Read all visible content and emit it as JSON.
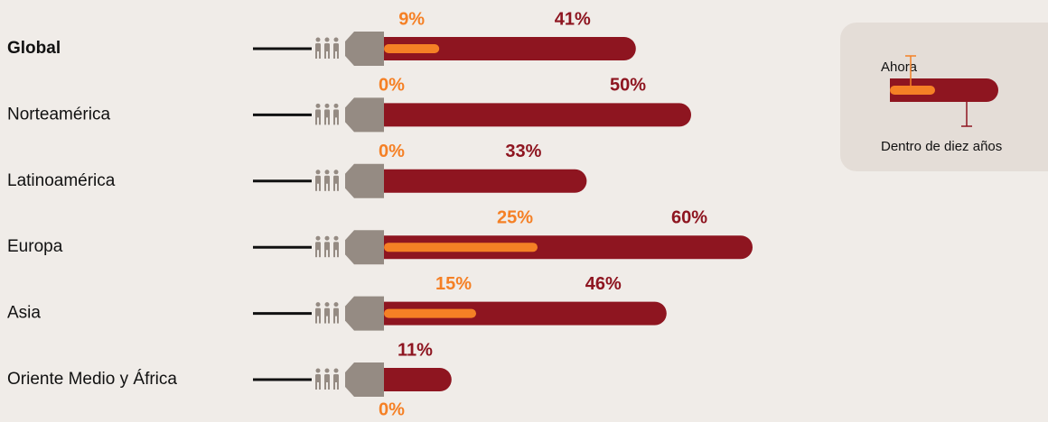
{
  "chart_data": {
    "type": "bar",
    "orientation": "horizontal",
    "categories": [
      "Global",
      "Norteamérica",
      "Latinoamérica",
      "Europa",
      "Asia",
      "Oriente Medio y África"
    ],
    "series": [
      {
        "name": "Ahora",
        "color": "#f58025",
        "values": [
          9,
          0,
          0,
          25,
          15,
          0
        ],
        "value_labels": [
          "9%",
          "0%",
          "0%",
          "25%",
          "15%",
          "0%"
        ]
      },
      {
        "name": "Dentro de diez años",
        "color": "#8e1520",
        "values": [
          41,
          50,
          33,
          60,
          46,
          11
        ],
        "value_labels": [
          "41%",
          "50%",
          "33%",
          "60%",
          "46%",
          "11%"
        ]
      }
    ]
  }
}
